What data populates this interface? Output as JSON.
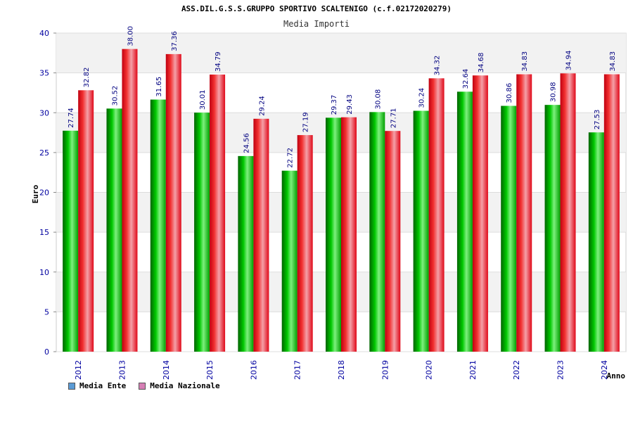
{
  "chart_data": {
    "type": "bar",
    "title": "ASS.DIL.G.S.S.GRUPPO SPORTIVO SCALTENIGO (c.f.02172020279)",
    "subtitle": "Media Importi",
    "xlabel": "Anno",
    "ylabel": "Euro",
    "ylim": [
      0,
      40
    ],
    "yticks": [
      0,
      5,
      10,
      15,
      20,
      25,
      30,
      35,
      40
    ],
    "grid": true,
    "legend_position": "bottom-left",
    "categories": [
      "2012",
      "2013",
      "2014",
      "2015",
      "2016",
      "2017",
      "2018",
      "2019",
      "2020",
      "2021",
      "2022",
      "2023",
      "2024"
    ],
    "series": [
      {
        "name": "Media Ente",
        "color": "#00b000",
        "legend_color": "#5b9bd5",
        "values": [
          27.74,
          30.52,
          31.65,
          30.01,
          24.56,
          22.72,
          29.37,
          30.08,
          30.24,
          32.64,
          30.86,
          30.98,
          27.53
        ],
        "labels": [
          "27.74",
          "30.52",
          "31.65",
          "30.01",
          "24.56",
          "22.72",
          "29.37",
          "30.08",
          "30.24",
          "32.64",
          "30.86",
          "30.98",
          "27.53"
        ]
      },
      {
        "name": "Media Nazionale",
        "color": "#e8101a",
        "legend_color": "#d67fb5",
        "values": [
          32.82,
          38.0,
          37.36,
          34.79,
          29.24,
          27.19,
          29.43,
          27.71,
          34.32,
          34.68,
          34.83,
          34.94,
          34.83
        ],
        "labels": [
          "32.82",
          "38.00",
          "37.36",
          "34.79",
          "29.24",
          "27.19",
          "29.43",
          "27.71",
          "34.32",
          "34.68",
          "34.83",
          "34.94",
          "34.83"
        ]
      }
    ]
  }
}
